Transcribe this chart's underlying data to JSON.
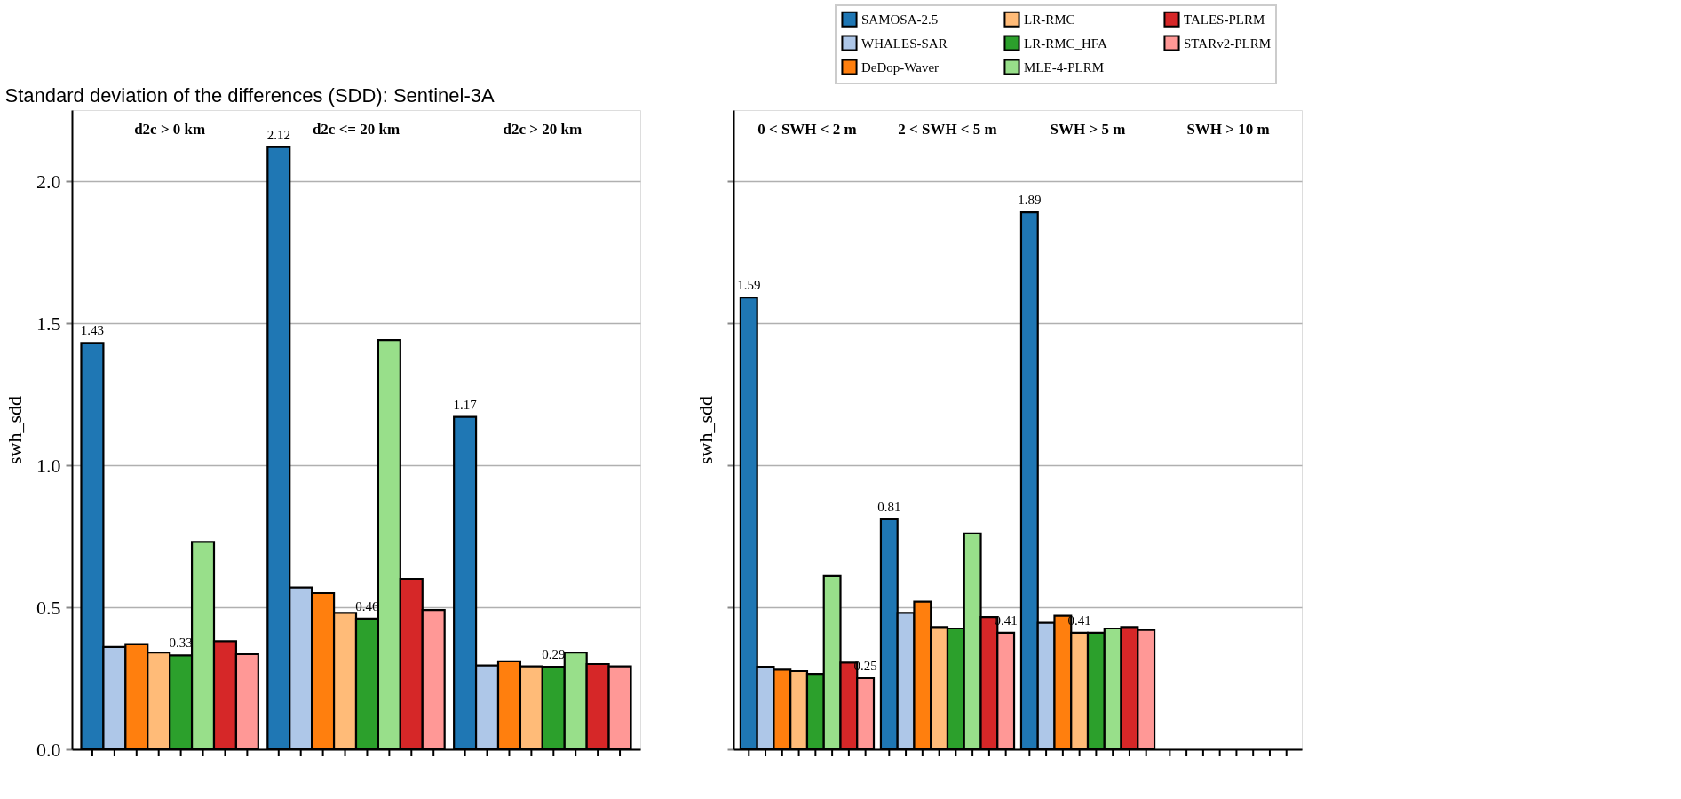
{
  "chart_data": [
    {
      "type": "bar",
      "title": "Standard deviation of the differences (SDD): Sentinel-3A",
      "ylabel": "swh_sdd",
      "categories": [
        "d2c > 0 km",
        "d2c <= 20 km",
        "d2c > 20 km"
      ],
      "ylim": [
        0,
        2.25
      ],
      "yticks": [
        {
          "value": 0,
          "label": "0.0"
        },
        0.5,
        {
          "value": 1,
          "label": "1.0"
        },
        1.5,
        {
          "value": 2,
          "label": "2.0"
        }
      ],
      "grid": "y",
      "legend": "top right",
      "tick_labels": "y",
      "series": [
        {
          "name": "SAMOSA-2.5",
          "color": "#1f77b4",
          "values": [
            1.43,
            2.12,
            1.17
          ],
          "value_labels": [
            "1.43",
            "2.12",
            "1.17"
          ]
        },
        {
          "name": "WHALES-SAR",
          "color": "#aec7e8",
          "values": [
            0.36,
            0.57,
            0.295
          ]
        },
        {
          "name": "DeDop-Waver",
          "color": "#ff7f0e",
          "values": [
            0.37,
            0.55,
            0.31
          ]
        },
        {
          "name": "LR-RMC",
          "color": "#ffbb78",
          "values": [
            0.34,
            0.48,
            0.292
          ]
        },
        {
          "name": "LR-RMC_HFA",
          "color": "#2ca02c",
          "values": [
            0.33,
            0.46,
            0.29
          ],
          "value_labels": [
            "0.33",
            "0.46",
            "0.29"
          ]
        },
        {
          "name": "MLE-4-PLRM",
          "color": "#98df8a",
          "values": [
            0.73,
            1.44,
            0.34
          ]
        },
        {
          "name": "TALES-PLRM",
          "color": "#d62728",
          "values": [
            0.38,
            0.6,
            0.3
          ]
        },
        {
          "name": "STARv2-PLRM",
          "color": "#ff9896",
          "values": [
            0.335,
            0.49,
            0.292
          ]
        }
      ]
    },
    {
      "type": "bar",
      "ylabel": "swh_sdd",
      "categories": [
        "0 < SWH < 2 m",
        "2 < SWH < 5 m",
        "SWH > 5 m",
        "SWH > 10 m"
      ],
      "ylim": [
        0,
        2.25
      ],
      "yticks": [
        0,
        0.5,
        1,
        1.5,
        2
      ],
      "grid": "y",
      "legend": "top right",
      "tick_labels": false,
      "series": [
        {
          "name": "SAMOSA-2.5",
          "color": "#1f77b4",
          "values": [
            1.59,
            0.81,
            1.89,
            null
          ],
          "value_labels": [
            "1.59",
            "0.81",
            "1.89",
            null
          ]
        },
        {
          "name": "WHALES-SAR",
          "color": "#aec7e8",
          "values": [
            0.29,
            0.48,
            0.445,
            null
          ]
        },
        {
          "name": "DeDop-Waver",
          "color": "#ff7f0e",
          "values": [
            0.28,
            0.52,
            0.47,
            null
          ]
        },
        {
          "name": "LR-RMC",
          "color": "#ffbb78",
          "values": [
            0.275,
            0.43,
            0.41,
            null
          ],
          "value_labels": [
            null,
            null,
            "0.41",
            null
          ]
        },
        {
          "name": "LR-RMC_HFA",
          "color": "#2ca02c",
          "values": [
            0.265,
            0.425,
            0.41,
            null
          ]
        },
        {
          "name": "MLE-4-PLRM",
          "color": "#98df8a",
          "values": [
            0.61,
            0.76,
            0.425,
            null
          ]
        },
        {
          "name": "TALES-PLRM",
          "color": "#d62728",
          "values": [
            0.305,
            0.465,
            0.43,
            null
          ]
        },
        {
          "name": "STARv2-PLRM",
          "color": "#ff9896",
          "values": [
            0.25,
            0.41,
            0.42,
            null
          ],
          "value_labels": [
            "0.25",
            "0.41",
            null,
            null
          ]
        }
      ]
    }
  ]
}
